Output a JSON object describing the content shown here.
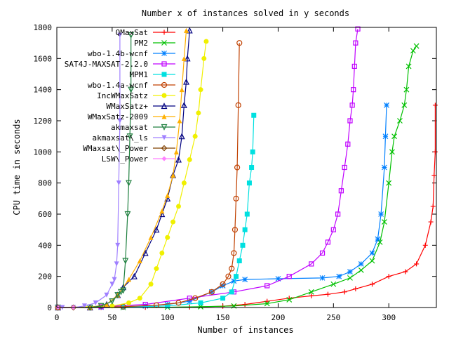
{
  "chart_data": {
    "type": "line",
    "title": "Number x of instances solved in y seconds",
    "xlabel": "Number of instances",
    "ylabel": "CPU time in seconds",
    "xlim": [
      0,
      343
    ],
    "ylim": [
      0,
      1800
    ],
    "x_ticks": [
      "0",
      "50",
      "100",
      "150",
      "200",
      "250",
      "300"
    ],
    "y_ticks": [
      "0",
      "200",
      "400",
      "600",
      "800",
      "1000",
      "1200",
      "1400",
      "1600",
      "1800"
    ],
    "grid": false,
    "legend_position": "top-left",
    "series": [
      {
        "name": "QMaxSat",
        "color": "#ff0000",
        "marker": "plus",
        "points": [
          [
            1,
            0
          ],
          [
            40,
            0
          ],
          [
            80,
            1
          ],
          [
            120,
            3
          ],
          [
            150,
            8
          ],
          [
            170,
            20
          ],
          [
            190,
            40
          ],
          [
            210,
            60
          ],
          [
            230,
            75
          ],
          [
            245,
            85
          ],
          [
            260,
            100
          ],
          [
            270,
            120
          ],
          [
            285,
            150
          ],
          [
            300,
            200
          ],
          [
            315,
            230
          ],
          [
            325,
            280
          ],
          [
            333,
            400
          ],
          [
            338,
            550
          ],
          [
            340,
            650
          ],
          [
            341,
            850
          ],
          [
            342,
            1000
          ],
          [
            342,
            1300
          ]
        ]
      },
      {
        "name": "PM2",
        "color": "#00c000",
        "marker": "cross",
        "points": [
          [
            1,
            0
          ],
          [
            60,
            0
          ],
          [
            100,
            2
          ],
          [
            130,
            5
          ],
          [
            160,
            10
          ],
          [
            190,
            25
          ],
          [
            210,
            50
          ],
          [
            230,
            100
          ],
          [
            250,
            150
          ],
          [
            265,
            190
          ],
          [
            275,
            240
          ],
          [
            285,
            300
          ],
          [
            292,
            420
          ],
          [
            296,
            550
          ],
          [
            300,
            800
          ],
          [
            303,
            1000
          ],
          [
            305,
            1100
          ],
          [
            310,
            1200
          ],
          [
            314,
            1300
          ],
          [
            316,
            1400
          ],
          [
            318,
            1550
          ],
          [
            322,
            1650
          ],
          [
            325,
            1680
          ]
        ]
      },
      {
        "name": "wbo-1.4b-wcnf",
        "color": "#0080ff",
        "marker": "star",
        "points": [
          [
            1,
            0
          ],
          [
            40,
            2
          ],
          [
            80,
            10
          ],
          [
            100,
            20
          ],
          [
            120,
            40
          ],
          [
            140,
            100
          ],
          [
            150,
            140
          ],
          [
            160,
            170
          ],
          [
            170,
            180
          ],
          [
            200,
            185
          ],
          [
            240,
            190
          ],
          [
            255,
            200
          ],
          [
            265,
            230
          ],
          [
            275,
            280
          ],
          [
            285,
            350
          ],
          [
            290,
            440
          ],
          [
            293,
            600
          ],
          [
            296,
            900
          ],
          [
            297,
            1100
          ],
          [
            298,
            1300
          ]
        ]
      },
      {
        "name": "SAT4J-MAXSAT-2.2.0",
        "color": "#c000ff",
        "marker": "square",
        "points": [
          [
            1,
            0
          ],
          [
            40,
            5
          ],
          [
            80,
            20
          ],
          [
            120,
            60
          ],
          [
            160,
            100
          ],
          [
            190,
            140
          ],
          [
            210,
            200
          ],
          [
            230,
            280
          ],
          [
            240,
            350
          ],
          [
            245,
            420
          ],
          [
            250,
            500
          ],
          [
            254,
            600
          ],
          [
            257,
            750
          ],
          [
            260,
            900
          ],
          [
            263,
            1050
          ],
          [
            265,
            1200
          ],
          [
            267,
            1300
          ],
          [
            268,
            1400
          ],
          [
            269,
            1550
          ],
          [
            270,
            1700
          ],
          [
            272,
            1790
          ]
        ]
      },
      {
        "name": "MPM1",
        "color": "#00e0e0",
        "marker": "filledsquare",
        "points": [
          [
            1,
            0
          ],
          [
            60,
            2
          ],
          [
            100,
            10
          ],
          [
            130,
            30
          ],
          [
            150,
            60
          ],
          [
            158,
            100
          ],
          [
            162,
            200
          ],
          [
            165,
            300
          ],
          [
            168,
            400
          ],
          [
            170,
            500
          ],
          [
            172,
            600
          ],
          [
            174,
            800
          ],
          [
            176,
            900
          ],
          [
            177,
            1000
          ],
          [
            178,
            1235
          ]
        ]
      },
      {
        "name": "wbo-1.4a-wcnf",
        "color": "#c04000",
        "marker": "circle",
        "points": [
          [
            1,
            0
          ],
          [
            60,
            5
          ],
          [
            90,
            15
          ],
          [
            110,
            30
          ],
          [
            125,
            60
          ],
          [
            140,
            100
          ],
          [
            150,
            150
          ],
          [
            155,
            200
          ],
          [
            158,
            250
          ],
          [
            160,
            350
          ],
          [
            161,
            500
          ],
          [
            162,
            700
          ],
          [
            163,
            900
          ],
          [
            164,
            1300
          ],
          [
            165,
            1700
          ]
        ]
      },
      {
        "name": "IncWMaxSatz",
        "color": "#f0f000",
        "marker": "filledcircle",
        "points": [
          [
            1,
            0
          ],
          [
            50,
            10
          ],
          [
            65,
            30
          ],
          [
            75,
            60
          ],
          [
            85,
            150
          ],
          [
            90,
            250
          ],
          [
            95,
            350
          ],
          [
            100,
            450
          ],
          [
            105,
            550
          ],
          [
            110,
            650
          ],
          [
            115,
            800
          ],
          [
            120,
            950
          ],
          [
            125,
            1100
          ],
          [
            128,
            1250
          ],
          [
            130,
            1400
          ],
          [
            133,
            1600
          ],
          [
            135,
            1710
          ]
        ]
      },
      {
        "name": "WMaxSatz+",
        "color": "#000080",
        "marker": "triangle",
        "points": [
          [
            1,
            0
          ],
          [
            30,
            0
          ],
          [
            45,
            20
          ],
          [
            55,
            80
          ],
          [
            60,
            130
          ],
          [
            70,
            200
          ],
          [
            80,
            350
          ],
          [
            90,
            500
          ],
          [
            95,
            600
          ],
          [
            100,
            700
          ],
          [
            105,
            850
          ],
          [
            110,
            950
          ],
          [
            113,
            1100
          ],
          [
            115,
            1300
          ],
          [
            117,
            1450
          ],
          [
            118,
            1600
          ],
          [
            120,
            1780
          ]
        ]
      },
      {
        "name": "WMaxSatz-2009",
        "color": "#ffb000",
        "marker": "filledtriangle",
        "points": [
          [
            1,
            0
          ],
          [
            30,
            0
          ],
          [
            45,
            20
          ],
          [
            55,
            80
          ],
          [
            65,
            180
          ],
          [
            75,
            300
          ],
          [
            85,
            450
          ],
          [
            95,
            620
          ],
          [
            100,
            720
          ],
          [
            105,
            850
          ],
          [
            108,
            1000
          ],
          [
            111,
            1200
          ],
          [
            113,
            1400
          ],
          [
            115,
            1600
          ],
          [
            117,
            1780
          ]
        ]
      },
      {
        "name": "akmaxsat",
        "color": "#208040",
        "marker": "invtriangle",
        "points": [
          [
            1,
            0
          ],
          [
            30,
            0
          ],
          [
            40,
            10
          ],
          [
            50,
            40
          ],
          [
            55,
            80
          ],
          [
            58,
            100
          ],
          [
            60,
            110
          ],
          [
            62,
            300
          ],
          [
            64,
            600
          ],
          [
            65,
            800
          ],
          [
            66,
            1100
          ],
          [
            67,
            1400
          ],
          [
            67,
            1750
          ]
        ]
      },
      {
        "name": "akmaxsat\\_ls",
        "color": "#a080ff",
        "marker": "filledinvtriangle",
        "points": [
          [
            1,
            0
          ],
          [
            5,
            0
          ],
          [
            15,
            0
          ],
          [
            25,
            10
          ],
          [
            35,
            30
          ],
          [
            45,
            80
          ],
          [
            50,
            150
          ],
          [
            52,
            180
          ],
          [
            54,
            280
          ],
          [
            55,
            400
          ],
          [
            56,
            800
          ],
          [
            57,
            1200
          ],
          [
            57,
            1750
          ]
        ]
      },
      {
        "name": "WMaxsat\\_Power",
        "color": "#804000",
        "marker": "diamond",
        "points": [
          [
            1,
            0
          ],
          [
            15,
            0
          ]
        ]
      },
      {
        "name": "LSW\\_Power",
        "color": "#ff80ff",
        "marker": "filleddiamond",
        "points": [
          [
            1,
            0
          ],
          [
            15,
            0
          ]
        ]
      }
    ]
  }
}
